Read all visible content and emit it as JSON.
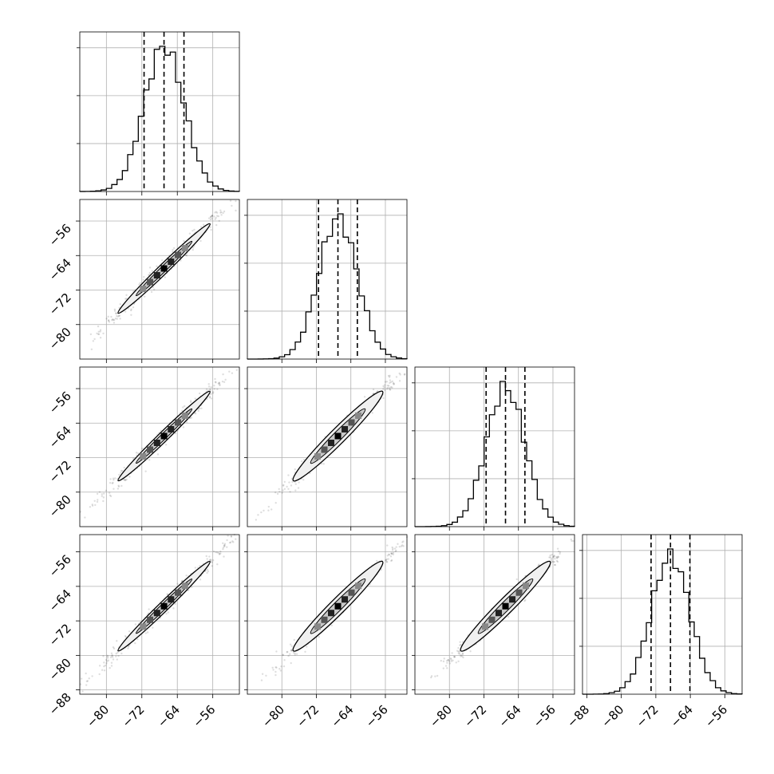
{
  "chart_data": {
    "type": "scatter",
    "subtype": "corner-plot",
    "n_params": 4,
    "title": "",
    "param_labels": [
      "",
      "",
      "",
      ""
    ],
    "quantiles": [
      0.16,
      0.5,
      0.84
    ],
    "grid": true,
    "colors": {
      "line": "#000000",
      "grid": "#b0b0b0",
      "points": "#000000"
    },
    "params": [
      {
        "index": 0,
        "range": [
          -86,
          -50
        ],
        "median": -67,
        "q16": -71.5,
        "q84": -62.5,
        "sigma": 4.5
      },
      {
        "index": 1,
        "range": [
          -88,
          -51
        ],
        "median": -67,
        "q16": -71.5,
        "q84": -62.5,
        "sigma": 4.5
      },
      {
        "index": 2,
        "range": [
          -88,
          -51
        ],
        "median": -67,
        "q16": -71.5,
        "q84": -62.5,
        "sigma": 4.5
      },
      {
        "index": 3,
        "range": [
          -89,
          -52
        ],
        "median": -68.6,
        "q16": -73.1,
        "q84": -64.1,
        "sigma": 4.5
      }
    ],
    "correlation": 0.99,
    "x_ticks": {
      "col0": [
        "-80",
        "-72",
        "-64",
        "-56"
      ],
      "col1": [
        "-80",
        "-72",
        "-64",
        "-56"
      ],
      "col2": [
        "-80",
        "-72",
        "-64",
        "-56"
      ],
      "col3": [
        "-88",
        "-80",
        "-72",
        "-64",
        "-56"
      ]
    },
    "y_ticks": {
      "row1": [
        "-56",
        "-64",
        "-72",
        "-80"
      ],
      "row2": [
        "-56",
        "-64",
        "-72",
        "-80"
      ],
      "row3": [
        "-56",
        "-64",
        "-72",
        "-80",
        "-88"
      ]
    },
    "tick_values": {
      "col0": [
        -80,
        -72,
        -64,
        -56
      ],
      "col1": [
        -80,
        -72,
        -64,
        -56
      ],
      "col2": [
        -80,
        -72,
        -64,
        -56
      ],
      "col3": [
        -88,
        -80,
        -72,
        -64,
        -56
      ],
      "row1": [
        -56,
        -64,
        -72,
        -80
      ],
      "row2": [
        -56,
        -64,
        -72,
        -80
      ],
      "row3": [
        -56,
        -64,
        -72,
        -80,
        -88
      ]
    }
  }
}
